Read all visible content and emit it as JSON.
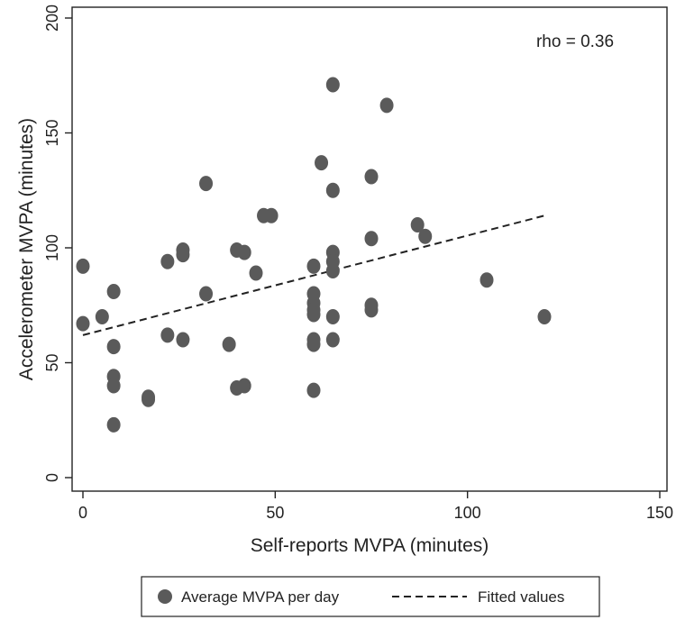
{
  "chart_data": {
    "type": "scatter",
    "xlabel": "Self-reports MVPA (minutes)",
    "ylabel": "Accelerometer MVPA (minutes)",
    "xlim": [
      0,
      150
    ],
    "ylim": [
      0,
      200
    ],
    "xticks": [
      "0",
      "50",
      "100",
      "150"
    ],
    "yticks": [
      "0",
      "50",
      "100",
      "150",
      "200"
    ],
    "annotation": "rho = 0.36",
    "grid": false,
    "legend_position": "bottom",
    "point_color": "#5a5a5a",
    "line_color": "#222222",
    "series": [
      {
        "name": "Average MVPA per day",
        "kind": "points",
        "points": [
          [
            0,
            92
          ],
          [
            0,
            67
          ],
          [
            5,
            70
          ],
          [
            8,
            81
          ],
          [
            8,
            57
          ],
          [
            8,
            44
          ],
          [
            8,
            40
          ],
          [
            8,
            23
          ],
          [
            17,
            35
          ],
          [
            17,
            34
          ],
          [
            22,
            94
          ],
          [
            22,
            62
          ],
          [
            26,
            99
          ],
          [
            26,
            97
          ],
          [
            26,
            60
          ],
          [
            32,
            128
          ],
          [
            32,
            80
          ],
          [
            38,
            58
          ],
          [
            40,
            99
          ],
          [
            40,
            39
          ],
          [
            42,
            98
          ],
          [
            42,
            40
          ],
          [
            45,
            89
          ],
          [
            47,
            114
          ],
          [
            49,
            114
          ],
          [
            60,
            92
          ],
          [
            60,
            80
          ],
          [
            60,
            76
          ],
          [
            60,
            73
          ],
          [
            60,
            71
          ],
          [
            60,
            60
          ],
          [
            60,
            58
          ],
          [
            60,
            38
          ],
          [
            62,
            137
          ],
          [
            65,
            171
          ],
          [
            65,
            125
          ],
          [
            65,
            98
          ],
          [
            65,
            94
          ],
          [
            65,
            90
          ],
          [
            65,
            70
          ],
          [
            65,
            60
          ],
          [
            75,
            131
          ],
          [
            75,
            104
          ],
          [
            75,
            75
          ],
          [
            75,
            73
          ],
          [
            79,
            162
          ],
          [
            87,
            110
          ],
          [
            89,
            105
          ],
          [
            105,
            86
          ],
          [
            120,
            70
          ]
        ]
      },
      {
        "name": "Fitted values",
        "kind": "line",
        "points": [
          [
            0,
            62
          ],
          [
            120,
            114
          ]
        ]
      }
    ]
  }
}
